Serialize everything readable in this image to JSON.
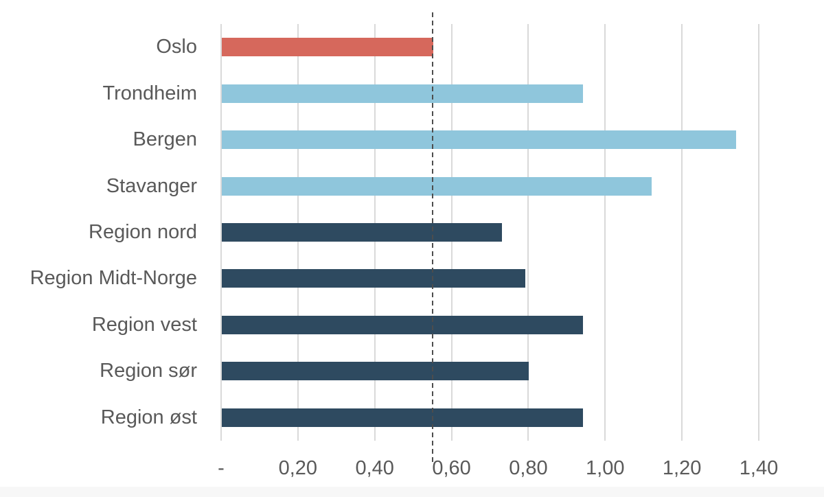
{
  "chart_data": {
    "type": "bar",
    "orientation": "horizontal",
    "title": "",
    "categories": [
      "Oslo",
      "Trondheim",
      "Bergen",
      "Stavanger",
      "Region nord",
      "Region Midt-Norge",
      "Region vest",
      "Region sør",
      "Region øst"
    ],
    "values": [
      0.55,
      0.94,
      1.34,
      1.12,
      0.73,
      0.79,
      0.94,
      0.8,
      0.94
    ],
    "bar_groups": [
      "oslo",
      "city",
      "city",
      "city",
      "region",
      "region",
      "region",
      "region",
      "region"
    ],
    "group_colors": {
      "oslo": "#d6685c",
      "city": "#8fc6dc",
      "region": "#2e4a60"
    },
    "x_axis": {
      "min": 0,
      "max": 1.4,
      "number_format": "norwegian-comma",
      "ticks": [
        {
          "label": "-",
          "value": 0
        },
        {
          "label": "0,20",
          "value": 0.2
        },
        {
          "label": "0,40",
          "value": 0.4
        },
        {
          "label": "0,60",
          "value": 0.6
        },
        {
          "label": "0,80",
          "value": 0.8
        },
        {
          "label": "1,00",
          "value": 1.0
        },
        {
          "label": "1,20",
          "value": 1.2
        },
        {
          "label": "1,40",
          "value": 1.4
        }
      ]
    },
    "y_axis": {
      "label": ""
    },
    "reference_line": {
      "value": 0.55,
      "style": "dashed",
      "color": "#4d4d4d"
    },
    "gridlines": {
      "vertical": true,
      "horizontal": false,
      "color": "#d9d9d9"
    },
    "legend": "none",
    "text_color": "#595959",
    "background": "#ffffff"
  }
}
